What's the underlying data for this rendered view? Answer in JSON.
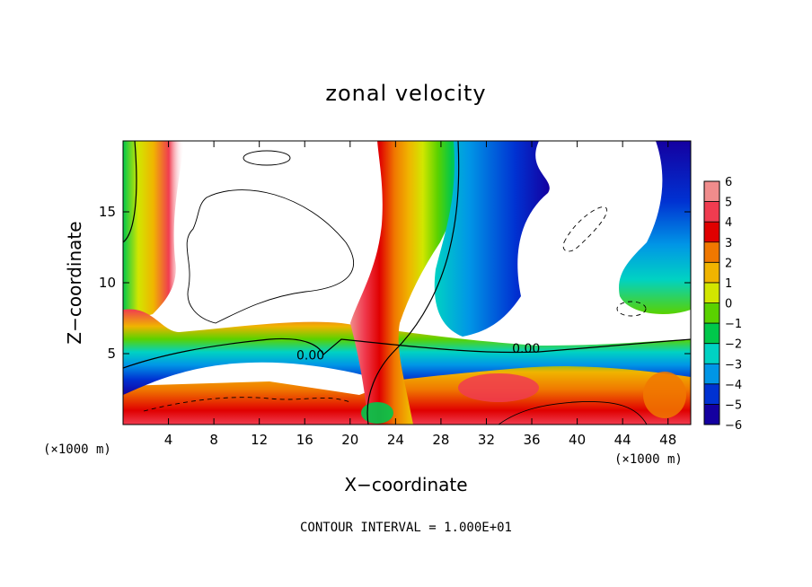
{
  "chart_data": {
    "type": "heatmap",
    "title": "zonal velocity",
    "xlabel": "X−coordinate",
    "ylabel": "Z−coordinate",
    "x_unit_left": "(×1000 m)",
    "x_unit_right": "(×1000 m)",
    "x_ticks": [
      4,
      8,
      12,
      16,
      20,
      24,
      28,
      32,
      36,
      40,
      44,
      48
    ],
    "x_tick_labels": [
      "4",
      "8",
      "12",
      "16",
      "20",
      "24",
      "28",
      "32",
      "36",
      "40",
      "44",
      "48"
    ],
    "y_ticks": [
      5,
      10,
      15
    ],
    "y_tick_labels": [
      "5",
      "10",
      "15"
    ],
    "xlim": [
      0,
      50
    ],
    "ylim": [
      0,
      20
    ],
    "contour_labels": [
      {
        "text": "0.00",
        "x": 16.5,
        "y": 4.7
      },
      {
        "text": "0.00",
        "x": 35.5,
        "y": 5.2
      }
    ],
    "colorbar": {
      "levels": [
        6,
        5,
        4,
        3,
        2,
        1,
        0,
        -1,
        -2,
        -3,
        -4,
        -5,
        -6
      ],
      "labels": [
        "6",
        "5",
        "4",
        "3",
        "2",
        "1",
        "0",
        "−1",
        "−2",
        "−3",
        "−4",
        "−5",
        "−6"
      ],
      "colors": [
        "#f08c8c",
        "#f03c50",
        "#e00000",
        "#f07800",
        "#f0b400",
        "#d2e600",
        "#5ad200",
        "#00c84b",
        "#00d2c3",
        "#0096e6",
        "#0032d2",
        "#1400a0",
        "#780096"
      ]
    },
    "note": "CONTOUR INTERVAL = 1.000E+01"
  }
}
